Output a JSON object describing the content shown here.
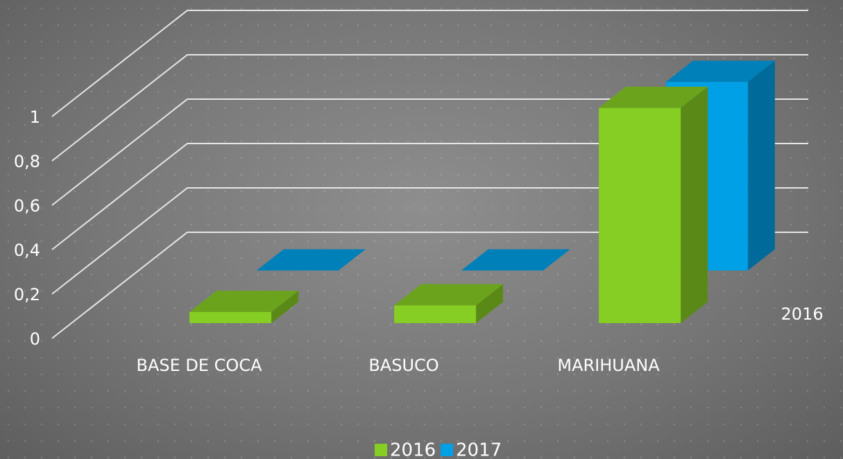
{
  "chart_data": {
    "type": "bar3d",
    "categories": [
      "BASE DE COCA",
      "BASUCO",
      "MARIHUANA"
    ],
    "series": [
      {
        "name": "2016",
        "color": "#86cd24",
        "values": [
          0.05,
          0.08,
          0.97
        ]
      },
      {
        "name": "2017",
        "color": "#00a0e6",
        "values": [
          0,
          0,
          0.85
        ]
      }
    ],
    "ylim": [
      0,
      1
    ],
    "yticks": [
      0,
      {
        "value": 0.2,
        "label": "0,2"
      },
      {
        "value": 0.4,
        "label": "0,4"
      },
      {
        "value": 0.6,
        "label": "0,6"
      },
      {
        "value": 0.8,
        "label": "0,8"
      },
      1
    ],
    "grid": true,
    "legend": "bottom"
  }
}
